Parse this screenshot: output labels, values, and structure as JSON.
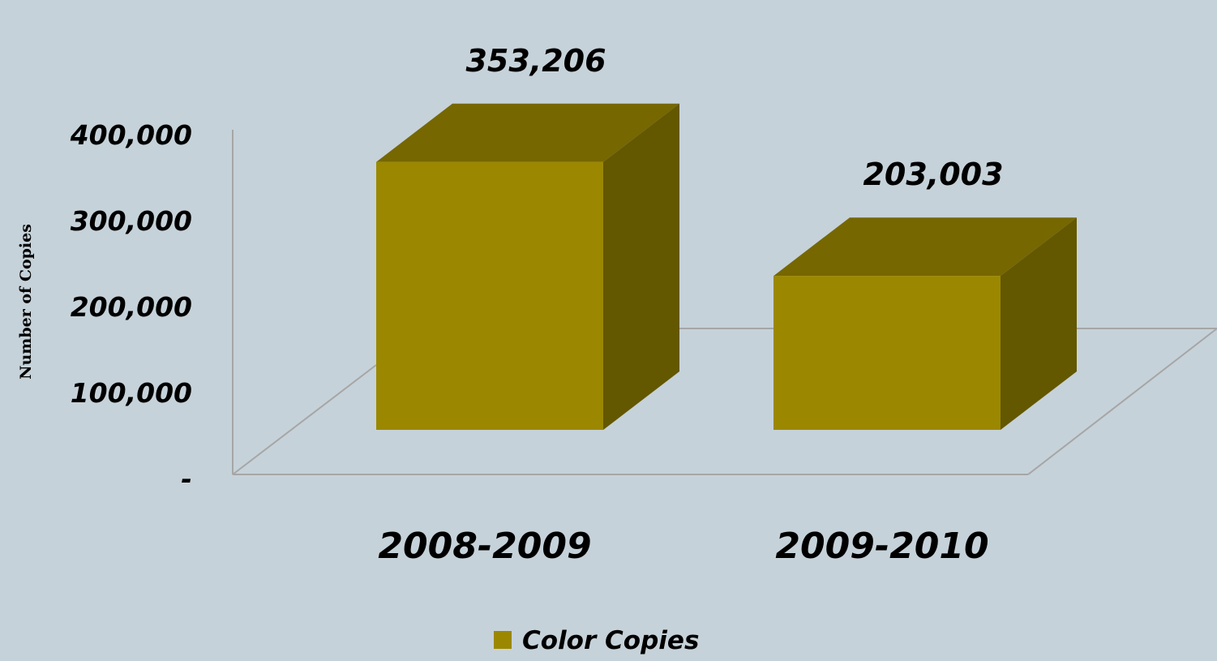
{
  "chart_data": {
    "type": "bar",
    "categories": [
      "2008-2009",
      "2009-2010"
    ],
    "series": [
      {
        "name": "Color Copies",
        "values": [
          353206,
          203003
        ],
        "value_labels": [
          "353,206",
          "203,003"
        ]
      }
    ],
    "ylabel": "Number of Copies",
    "ylim": [
      0,
      400000
    ],
    "y_ticks": [
      0,
      100000,
      200000,
      300000,
      400000
    ],
    "y_tick_labels": [
      "-",
      "100,000",
      "200,000",
      "300,000",
      "400,000"
    ],
    "grid": false,
    "style": "3d-column",
    "legend": "bottom-center",
    "colors": {
      "front": "#9b8800",
      "top": "#766700",
      "side": "#635700",
      "background": "#c6d2d9",
      "wall": "#a6a6a6"
    }
  }
}
